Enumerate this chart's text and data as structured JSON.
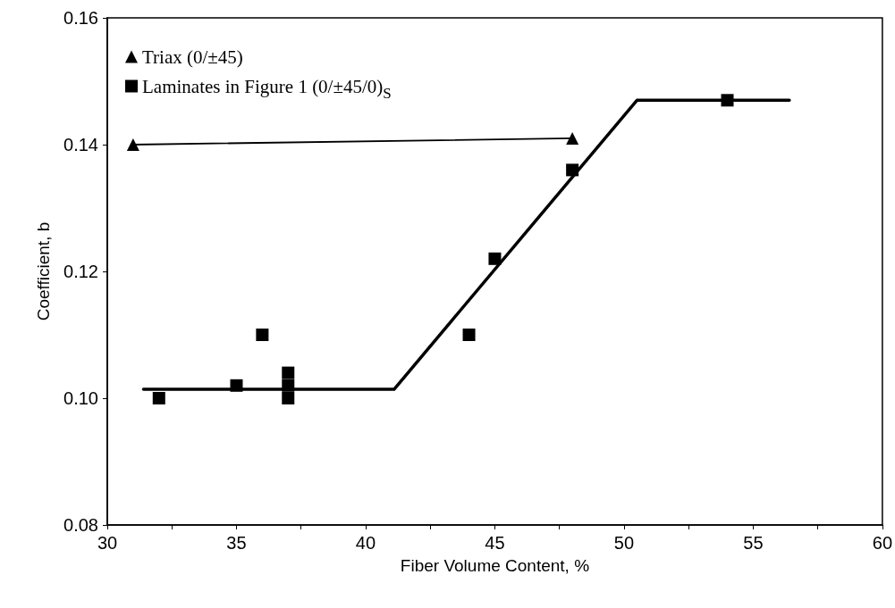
{
  "chart_data": {
    "type": "scatter",
    "xlabel": "Fiber Volume Content, %",
    "ylabel": "Coefficient, b",
    "xlim": [
      30,
      60
    ],
    "ylim": [
      0.08,
      0.16
    ],
    "xticks": [
      30,
      {
        "value": 32.5,
        "label": null
      },
      35,
      {
        "value": 37.5,
        "label": null
      },
      40,
      {
        "value": 42.5,
        "label": null
      },
      45,
      {
        "value": 47.5,
        "label": null
      },
      50,
      {
        "value": 52.5,
        "label": null
      },
      55,
      {
        "value": 57.5,
        "label": null
      },
      60
    ],
    "yticks": [
      {
        "value": 0.08,
        "label": "0.08"
      },
      {
        "value": 0.1,
        "label": "0.10"
      },
      {
        "value": 0.12,
        "label": "0.12"
      },
      {
        "value": 0.14,
        "label": "0.14"
      },
      {
        "value": 0.16,
        "label": "0.16"
      }
    ],
    "grid": false,
    "legend": "top left",
    "series": [
      {
        "name": "Triax (0/±45)",
        "color": "#000000",
        "marker": "triangle",
        "x": [
          31,
          48
        ],
        "values": [
          0.14,
          0.141
        ]
      },
      {
        "type": "line",
        "color": "#000000",
        "marker": "none",
        "line_style": "solid",
        "x": [
          31,
          48
        ],
        "values": [
          0.14,
          0.141
        ]
      },
      {
        "name": "Laminates in Figure 1 (0/±45/0)$_{S}$",
        "color": "#000000",
        "marker": "square",
        "x": [
          32,
          35,
          36,
          37,
          37,
          37,
          44,
          45,
          48,
          54
        ],
        "values": [
          0.1,
          0.102,
          0.11,
          0.104,
          0.102,
          0.1,
          0.11,
          0.122,
          0.136,
          0.147
        ]
      },
      {
        "type": "line",
        "color": "#000000",
        "marker": "none",
        "line_style": "solid",
        "x": [
          31.4,
          41.1,
          50.5,
          56.4
        ],
        "values": [
          0.1014,
          0.1014,
          0.147,
          0.147
        ]
      }
    ]
  }
}
